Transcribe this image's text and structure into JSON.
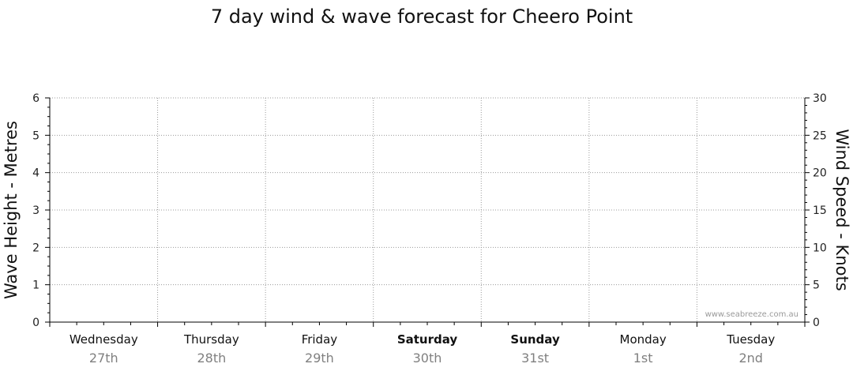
{
  "chart_data": {
    "type": "line",
    "title": "7 day wind & wave forecast for Cheero Point",
    "ylabel_left": "Wave Height - Metres",
    "ylabel_right": "Wind Speed - Knots",
    "ylim_left": [
      0,
      6
    ],
    "ylim_right": [
      0,
      30
    ],
    "left_ticks": [
      "0",
      "1",
      "2",
      "3",
      "4",
      "5",
      "6"
    ],
    "right_ticks": [
      "0",
      "5",
      "10",
      "15",
      "20",
      "25",
      "30"
    ],
    "days": [
      {
        "name": "Wednesday",
        "date": "27th",
        "weekend": false
      },
      {
        "name": "Thursday",
        "date": "28th",
        "weekend": false
      },
      {
        "name": "Friday",
        "date": "29th",
        "weekend": false
      },
      {
        "name": "Saturday",
        "date": "30th",
        "weekend": true
      },
      {
        "name": "Sunday",
        "date": "31st",
        "weekend": true
      },
      {
        "name": "Monday",
        "date": "1st",
        "weekend": false
      },
      {
        "name": "Tuesday",
        "date": "2nd",
        "weekend": false
      }
    ],
    "series": [],
    "grid": true,
    "watermark": "www.seabreeze.com.au"
  }
}
